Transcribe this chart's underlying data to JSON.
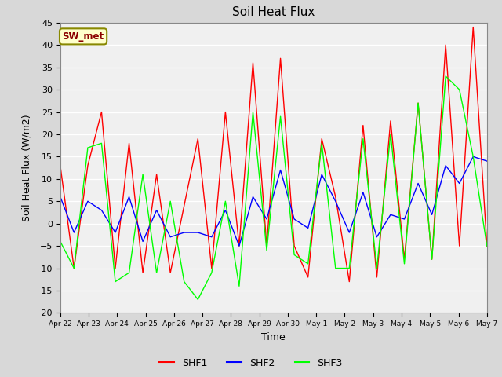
{
  "title": "Soil Heat Flux",
  "xlabel": "Time",
  "ylabel": "Soil Heat Flux (W/m2)",
  "ylim": [
    -20,
    45
  ],
  "fig_bg_color": "#d8d8d8",
  "plot_bg_color": "#f0f0f0",
  "grid_color": "white",
  "legend_label": "SW_met",
  "series_labels": [
    "SHF1",
    "SHF2",
    "SHF3"
  ],
  "series_colors": [
    "red",
    "blue",
    "lime"
  ],
  "xtick_labels": [
    "Apr 22",
    "Apr 23",
    "Apr 24",
    "Apr 25",
    "Apr 26",
    "Apr 27",
    "Apr 28",
    "Apr 29",
    "Apr 30",
    "May 1",
    "May 2",
    "May 3",
    "May 4",
    "May 5",
    "May 6",
    "May 7"
  ],
  "SHF1": [
    13,
    -10,
    13,
    25,
    -10,
    18,
    -11,
    11,
    -11,
    4,
    19,
    -10,
    25,
    -5,
    36,
    -5,
    37,
    -5,
    -12,
    19,
    6,
    -13,
    22,
    -12,
    23,
    -8,
    27,
    -8,
    40,
    -5,
    44,
    -5
  ],
  "SHF2": [
    6,
    -2,
    5,
    3,
    -2,
    6,
    -4,
    3,
    -3,
    -2,
    -2,
    -3,
    3,
    -5,
    6,
    1,
    12,
    1,
    -1,
    11,
    5,
    -2,
    7,
    -3,
    2,
    1,
    9,
    2,
    13,
    9,
    15,
    14
  ],
  "SHF3": [
    -4,
    -10,
    17,
    18,
    -13,
    -11,
    11,
    -11,
    5,
    -13,
    -17,
    -11,
    5,
    -14,
    25,
    -6,
    24,
    -7,
    -9,
    18,
    -10,
    -10,
    19,
    -10,
    20,
    -9,
    27,
    -8,
    33,
    30,
    15,
    -5
  ]
}
